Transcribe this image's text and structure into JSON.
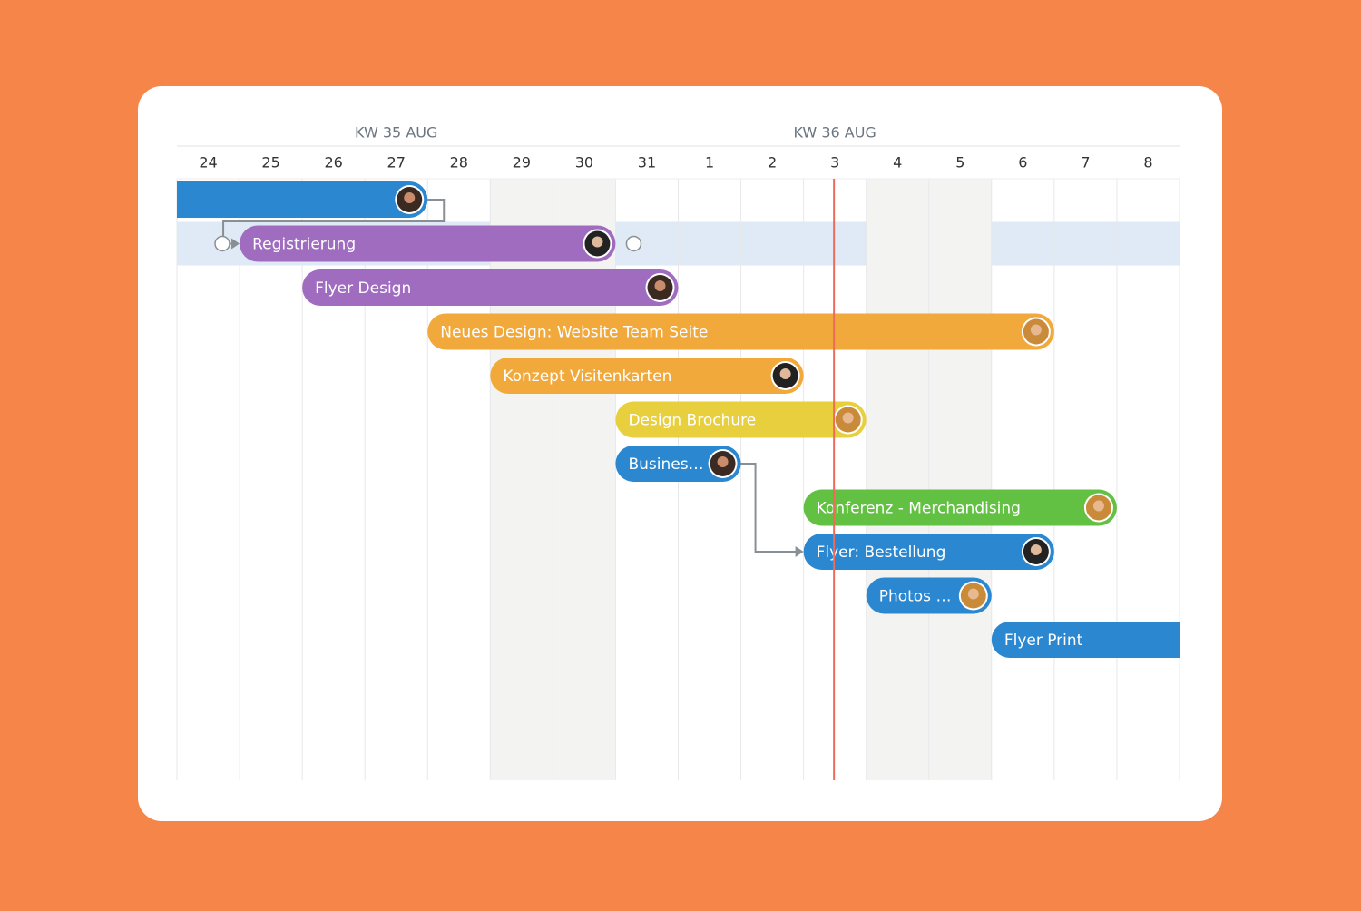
{
  "timeline": {
    "weeks": [
      {
        "label": "KW 35 AUG",
        "from": 0,
        "to": 6
      },
      {
        "label": "KW 36 AUG",
        "from": 7,
        "to": 13
      }
    ],
    "days": [
      "24",
      "25",
      "26",
      "27",
      "28",
      "29",
      "30",
      "31",
      "1",
      "2",
      "3",
      "4",
      "5",
      "6",
      "7",
      "8"
    ],
    "weekend_columns": [
      5,
      6,
      11,
      12
    ],
    "today_column": 10,
    "highlight_row": 1,
    "tasks": [
      {
        "from": 0,
        "to": 3,
        "color": "#2a87d0",
        "avatar": "m1",
        "open_start": true
      },
      {
        "label": "Registrierung",
        "from": 1,
        "to": 6,
        "color": "#a06cc0",
        "avatar": "m2"
      },
      {
        "label": "Flyer Design",
        "from": 2,
        "to": 7,
        "color": "#a06cc0",
        "avatar": "m1"
      },
      {
        "label": "Neues Design: Website Team Seite",
        "from": 4,
        "to": 13,
        "color": "#f2a93b",
        "avatar": "f1"
      },
      {
        "label": "Konzept Visitenkarten",
        "from": 5,
        "to": 9,
        "color": "#f2a93b",
        "avatar": "m2"
      },
      {
        "label": "Design Brochure",
        "from": 7,
        "to": 10,
        "color": "#e8cf3e",
        "avatar": "f1"
      },
      {
        "label": "Busines…",
        "from": 7,
        "to": 8,
        "color": "#2a87d0",
        "avatar": "m1"
      },
      {
        "label": "Konferenz - Merchandising",
        "from": 10,
        "to": 14,
        "color": "#62c142",
        "avatar": "f1"
      },
      {
        "label": "Flyer: Bestellung",
        "from": 10,
        "to": 13,
        "color": "#2a87d0",
        "avatar": "m2"
      },
      {
        "label": "Photos …",
        "from": 11,
        "to": 12,
        "color": "#2a87d0",
        "avatar": "f1"
      },
      {
        "label": "Flyer Print",
        "from": 13,
        "to": 15,
        "color": "#2a87d0",
        "open_end": true
      }
    ],
    "dependencies": [
      {
        "from": 0,
        "to": 1
      },
      {
        "from": 6,
        "to": 8
      }
    ]
  }
}
